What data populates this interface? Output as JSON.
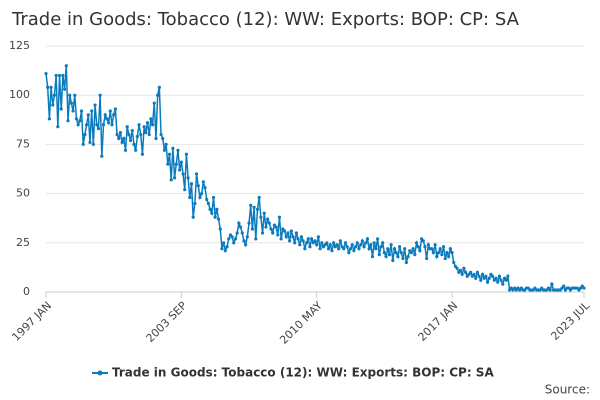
{
  "chart_data": {
    "type": "line",
    "title": "Trade in Goods: Tobacco (12): WW: Exports: BOP: CP: SA",
    "source_label": "Source:",
    "categories": [
      "1997 JAN",
      null,
      null,
      null,
      null,
      null,
      null,
      null,
      null,
      null,
      null,
      null,
      null,
      null,
      null,
      null,
      null,
      null,
      null,
      null,
      null,
      null,
      null,
      null,
      null,
      null,
      null,
      null,
      null,
      null,
      null,
      null,
      null,
      null,
      null,
      null,
      null,
      null,
      null,
      null,
      null,
      null,
      null,
      null,
      null,
      null,
      null,
      null,
      null,
      null,
      null,
      null,
      null,
      null,
      null,
      null,
      null,
      null,
      null,
      null,
      null,
      null,
      null,
      null,
      null,
      null,
      null,
      null,
      null,
      null,
      null,
      null,
      null,
      null,
      null,
      null,
      null,
      null,
      null,
      null,
      "2003 SEP",
      null,
      null,
      null,
      null,
      null,
      null,
      null,
      null,
      null,
      null,
      null,
      null,
      null,
      null,
      null,
      null,
      null,
      null,
      null,
      null,
      null,
      null,
      null,
      null,
      null,
      null,
      null,
      null,
      null,
      null,
      null,
      null,
      null,
      null,
      null,
      null,
      null,
      null,
      null,
      null,
      null,
      null,
      null,
      null,
      null,
      null,
      null,
      null,
      null,
      null,
      null,
      null,
      null,
      null,
      null,
      null,
      null,
      null,
      null,
      null,
      null,
      null,
      null,
      null,
      null,
      null,
      null,
      null,
      null,
      null,
      null,
      null,
      null,
      null,
      null,
      null,
      null,
      null,
      null,
      "2010 MAY",
      null,
      null,
      null,
      null,
      null,
      null,
      null,
      null,
      null,
      null,
      null,
      null,
      null,
      null,
      null,
      null,
      null,
      null,
      null,
      null,
      null,
      null,
      null,
      null,
      null,
      null,
      null,
      null,
      null,
      null,
      null,
      null,
      null,
      null,
      null,
      null,
      null,
      null,
      null,
      null,
      null,
      null,
      null,
      null,
      null,
      null,
      null,
      null,
      null,
      null,
      null,
      null,
      null,
      null,
      null,
      null,
      null,
      null,
      null,
      null,
      null,
      null,
      null,
      null,
      null,
      null,
      null,
      null,
      null,
      null,
      null,
      null,
      null,
      null,
      null,
      null,
      null,
      null,
      null,
      "2017 JAN",
      null,
      null,
      null,
      null,
      null,
      null,
      null,
      null,
      null,
      null,
      null,
      null,
      null,
      null,
      null,
      null,
      null,
      null,
      null,
      null,
      null,
      null,
      null,
      null,
      null,
      null,
      null,
      null,
      null,
      null,
      null,
      null,
      null,
      null,
      null,
      null,
      null,
      null,
      null,
      null,
      null,
      null,
      null,
      null,
      null,
      null,
      null,
      null,
      null,
      null,
      null,
      null,
      null,
      null,
      null,
      null,
      null,
      null,
      null,
      null,
      null,
      null,
      null,
      null,
      null,
      null,
      null,
      null,
      null,
      null,
      null,
      null,
      null,
      null,
      null,
      null,
      null,
      "2023 JUL"
    ],
    "series": [
      {
        "name": "Trade in Goods: Tobacco (12): WW: Exports: BOP: CP: SA",
        "color": "#0b7bbd",
        "values": [
          111,
          104,
          88,
          104,
          95,
          100,
          110,
          84,
          110,
          93,
          110,
          103,
          115,
          87,
          100,
          96,
          92,
          100,
          88,
          85,
          87,
          92,
          75,
          80,
          85,
          90,
          76,
          92,
          75,
          95,
          85,
          83,
          100,
          69,
          85,
          90,
          88,
          86,
          92,
          85,
          90,
          93,
          80,
          78,
          81,
          76,
          78,
          72,
          84,
          80,
          77,
          82,
          75,
          72,
          79,
          85,
          80,
          70,
          84,
          81,
          86,
          80,
          88,
          85,
          96,
          78,
          100,
          104,
          80,
          78,
          72,
          75,
          65,
          70,
          57,
          73,
          58,
          65,
          72,
          62,
          66,
          60,
          52,
          70,
          58,
          48,
          55,
          38,
          45,
          60,
          54,
          48,
          50,
          56,
          53,
          47,
          45,
          42,
          40,
          48,
          38,
          42,
          37,
          32,
          22,
          25,
          21,
          23,
          27,
          29,
          28,
          25,
          27,
          30,
          35,
          33,
          30,
          26,
          24,
          28,
          35,
          44,
          32,
          43,
          27,
          42,
          48,
          38,
          30,
          40,
          33,
          37,
          35,
          32,
          30,
          34,
          33,
          29,
          38,
          27,
          32,
          31,
          28,
          30,
          26,
          31,
          28,
          25,
          30,
          27,
          24,
          28,
          26,
          22,
          25,
          27,
          23,
          27,
          25,
          26,
          24,
          28,
          22,
          25,
          23,
          24,
          25,
          22,
          24,
          21,
          25,
          23,
          24,
          22,
          26,
          23,
          22,
          25,
          23,
          20,
          22,
          24,
          21,
          23,
          25,
          22,
          24,
          26,
          23,
          25,
          27,
          22,
          24,
          18,
          25,
          22,
          27,
          19,
          23,
          25,
          20,
          18,
          22,
          19,
          24,
          16,
          22,
          20,
          18,
          23,
          20,
          17,
          22,
          15,
          18,
          21,
          20,
          22,
          19,
          25,
          23,
          21,
          27,
          26,
          23,
          17,
          24,
          22,
          22,
          20,
          24,
          18,
          20,
          22,
          19,
          23,
          17,
          20,
          18,
          22,
          20,
          15,
          13,
          12,
          10,
          11,
          9,
          12,
          10,
          8,
          9,
          10,
          8,
          9,
          7,
          10,
          8,
          6,
          9,
          7,
          8,
          5,
          7,
          9,
          8,
          6,
          7,
          5,
          8,
          6,
          4,
          7,
          6,
          8,
          1,
          2,
          1,
          2,
          1,
          2,
          1,
          2,
          1,
          1,
          2,
          2,
          1,
          1,
          1,
          2,
          1,
          1,
          1,
          2,
          1,
          1,
          1,
          2,
          1,
          4,
          1,
          1,
          1,
          1,
          1,
          2,
          3,
          1,
          2,
          2,
          1,
          2,
          2,
          2,
          2,
          1,
          2,
          3,
          2
        ]
      }
    ],
    "ylim": [
      0,
      125
    ],
    "yticks": [
      0,
      25,
      50,
      75,
      100,
      125
    ],
    "grid": true
  }
}
